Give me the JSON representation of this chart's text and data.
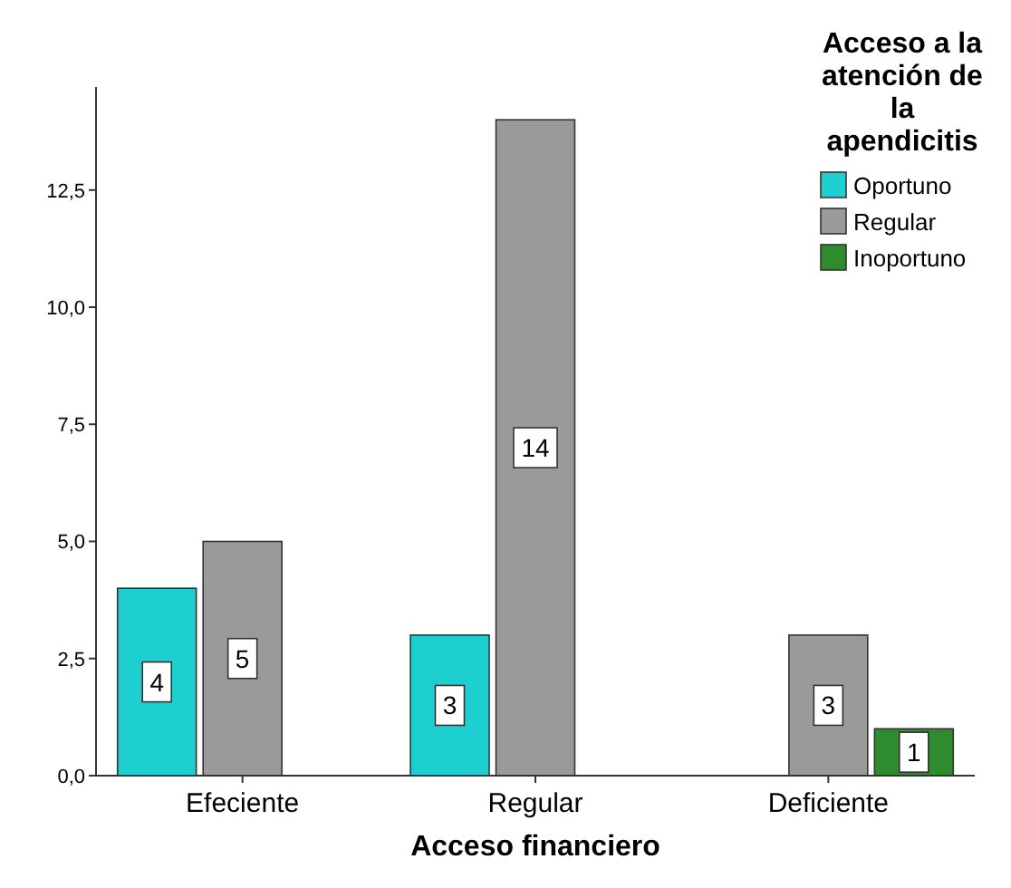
{
  "chart_data": {
    "type": "bar",
    "xlabel": "Acceso financiero",
    "legend_title": "Acceso a la atención de la apendicitis",
    "categories": [
      "Efeciente",
      "Regular",
      "Deficiente"
    ],
    "series": [
      {
        "name": "Oportuno",
        "color": "#1ecfd0",
        "values": [
          4,
          3,
          null
        ]
      },
      {
        "name": "Regular",
        "color": "#9a9a9a",
        "values": [
          5,
          14,
          3
        ]
      },
      {
        "name": "Inoportuno",
        "color": "#2e8b2e",
        "values": [
          null,
          null,
          1
        ]
      }
    ],
    "ylim": [
      0,
      14.7
    ],
    "yticks": [
      {
        "value": 0,
        "label": "0,0"
      },
      {
        "value": 2.5,
        "label": "2,5"
      },
      {
        "value": 5,
        "label": "5,0"
      },
      {
        "value": 7.5,
        "label": "7,5"
      },
      {
        "value": 10,
        "label": "10,0"
      },
      {
        "value": 12.5,
        "label": "12,5"
      }
    ],
    "data_labels": true,
    "legend": "top right",
    "grid": false
  }
}
